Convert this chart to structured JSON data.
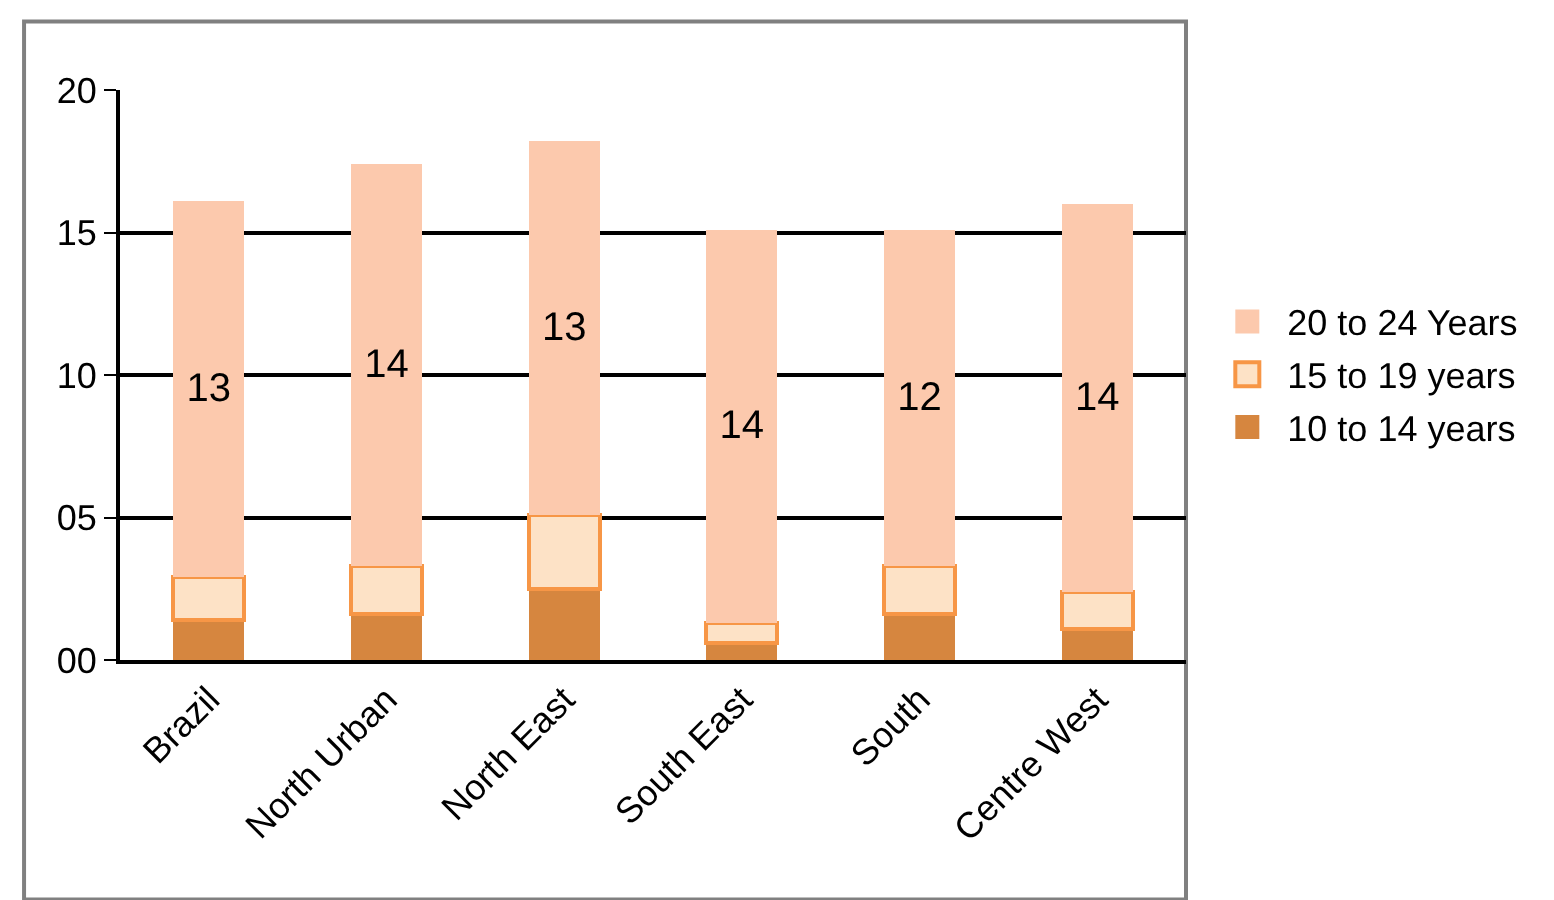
{
  "chart_data": {
    "type": "bar",
    "stacked": true,
    "categories": [
      "Brazil",
      "North Urban",
      "North East",
      "South East",
      "South",
      "Centre West"
    ],
    "series": [
      {
        "name": "10 to 14 years",
        "color": "#d6863f",
        "values": [
          1.4,
          1.6,
          2.5,
          0.6,
          1.6,
          1.1
        ]
      },
      {
        "name": "15 to 19 years",
        "color": "#fde2c6",
        "values": [
          1.5,
          1.7,
          2.6,
          0.7,
          1.7,
          1.3
        ]
      },
      {
        "name": "20 to 24 Years",
        "color": "#fcc9ad",
        "values": [
          13.2,
          14.1,
          13.1,
          13.8,
          11.8,
          13.6
        ],
        "value_labels": [
          "13",
          "14",
          "13",
          "14",
          "12",
          "14"
        ]
      }
    ],
    "ylim": [
      0,
      20
    ],
    "yticks": [
      {
        "value": 0,
        "label": "00"
      },
      {
        "value": 5,
        "label": "05"
      },
      {
        "value": 10,
        "label": "10"
      },
      {
        "value": 15,
        "label": "15"
      },
      {
        "value": 20,
        "label": "20"
      }
    ],
    "grid": "y",
    "legend": "right"
  }
}
